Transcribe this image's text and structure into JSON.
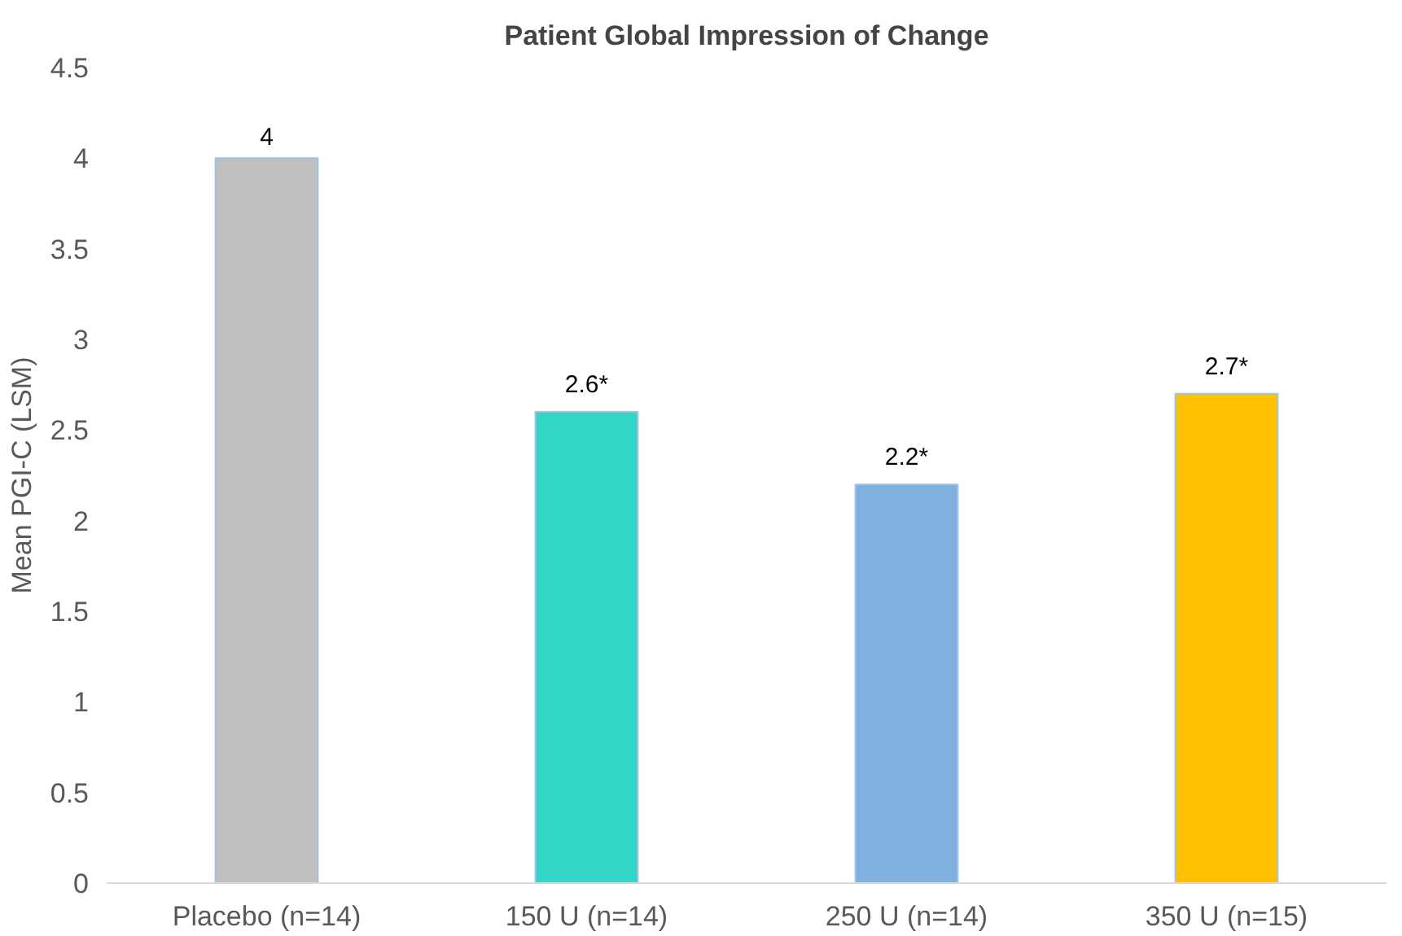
{
  "chart_data": {
    "type": "bar",
    "title": "Patient Global Impression of Change",
    "ylabel": "Mean PGI-C (LSM)",
    "categories": [
      "Placebo (n=14)",
      "150 U (n=14)",
      "250 U (n=14)",
      "350 U (n=15)"
    ],
    "values": [
      4,
      2.6,
      2.2,
      2.7
    ],
    "colors": [
      "#bfbfbf",
      "#33d6c6",
      "#7fb0e0",
      "#ffc000"
    ],
    "value_labels": [
      "4",
      "2.6*",
      "2.2*",
      "2.7*"
    ],
    "ylim": [
      0,
      4.5
    ],
    "yticks": [
      0,
      0.5,
      1,
      1.5,
      2,
      2.5,
      3,
      3.5,
      4,
      4.5
    ],
    "grid": false
  }
}
